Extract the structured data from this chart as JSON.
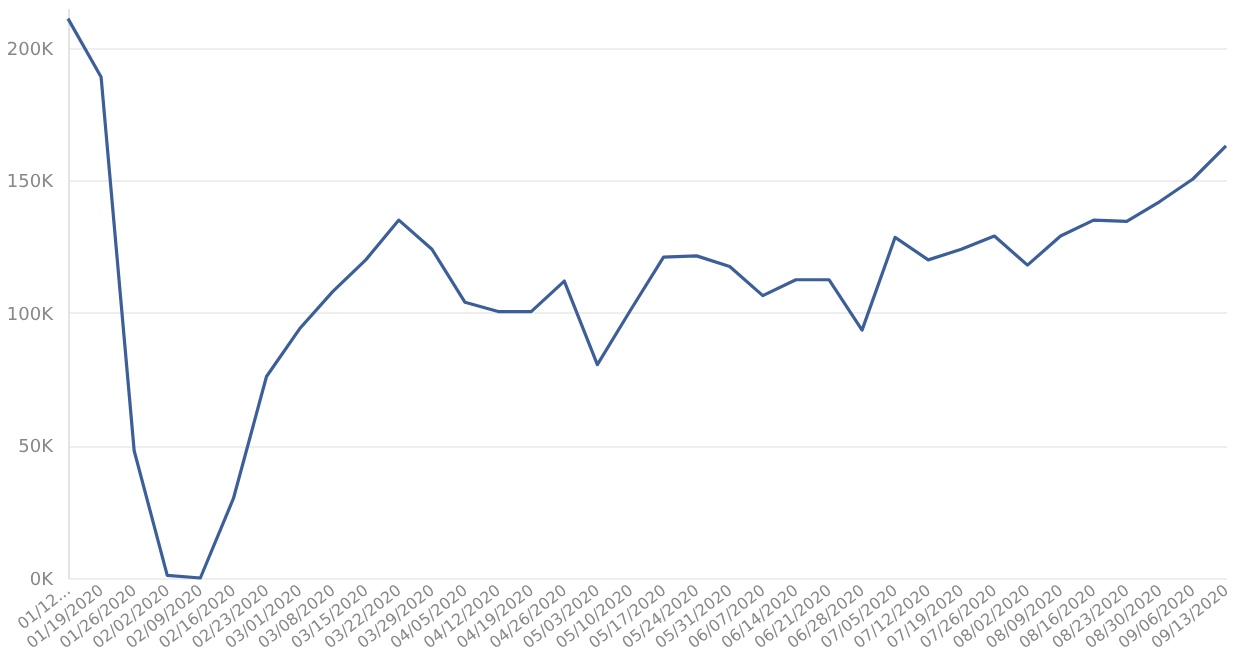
{
  "chart_data": {
    "type": "line",
    "categories": [
      "01/12...",
      "01/19/2020",
      "01/26/2020",
      "02/02/2020",
      "02/09/2020",
      "02/16/2020",
      "02/23/2020",
      "03/01/2020",
      "03/08/2020",
      "03/15/2020",
      "03/22/2020",
      "03/29/2020",
      "04/05/2020",
      "04/12/2020",
      "04/19/2020",
      "04/26/2020",
      "05/03/2020",
      "05/10/2020",
      "05/17/2020",
      "05/24/2020",
      "05/31/2020",
      "06/07/2020",
      "06/14/2020",
      "06/21/2020",
      "06/28/2020",
      "07/05/2020",
      "07/12/2020",
      "07/19/2020",
      "07/26/2020",
      "08/02/2020",
      "08/09/2020",
      "08/16/2020",
      "08/23/2020",
      "08/30/2020",
      "09/06/2020",
      "09/13/2020"
    ],
    "series": [
      {
        "color": "#3d5f99",
        "values": [
          211000,
          189000,
          48000,
          1000,
          0,
          30000,
          76000,
          94000,
          108000,
          120000,
          135000,
          124000,
          104000,
          100500,
          100500,
          112000,
          80500,
          101000,
          121000,
          121500,
          117500,
          106500,
          112500,
          112500,
          93500,
          128500,
          120000,
          124000,
          129000,
          118000,
          129000,
          135000,
          134500,
          142000,
          150500,
          163000
        ]
      }
    ],
    "ylim": [
      0,
      215000
    ],
    "yticks": [
      {
        "value": 0,
        "label": "0K"
      },
      {
        "value": 50000,
        "label": "50K"
      },
      {
        "value": 100000,
        "label": "100K"
      },
      {
        "value": 150000,
        "label": "150K"
      },
      {
        "value": 200000,
        "label": "200K"
      }
    ],
    "grid": "y",
    "marker": "none",
    "line_style": "solid"
  }
}
